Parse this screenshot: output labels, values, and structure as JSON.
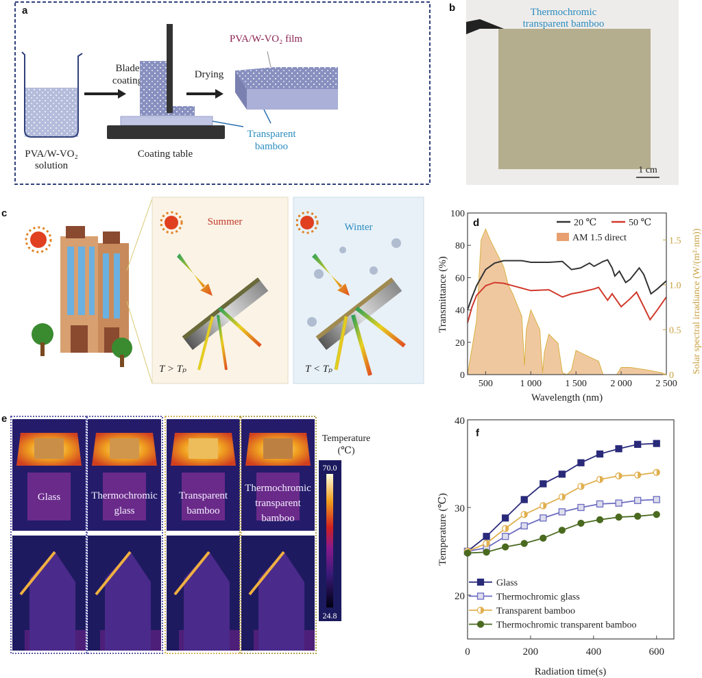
{
  "panel_a": {
    "label": "a",
    "solution_label_line1": "PVA/W-VO₂",
    "solution_label_line2": "solution",
    "step1_line1": "Blade",
    "step1_line2": "coating",
    "step2": "Drying",
    "table_label": "Coating table",
    "film_label": "PVA/W-VO₂ film",
    "substrate_line1": "Transparent",
    "substrate_line2": "bamboo",
    "colors": {
      "film": "#8b2252",
      "substrate": "#2a8bbf",
      "frame": "#2e3f7a"
    }
  },
  "panel_b": {
    "label": "b",
    "caption_line1": "Thermochromic",
    "caption_line2": "transparent bamboo",
    "scale_bar": "1 cm"
  },
  "panel_c": {
    "label": "c",
    "summer": "Summer",
    "winter": "Winter",
    "summer_condition": "T > Tₚ",
    "winter_condition": "T < Tₚ",
    "colors": {
      "summer": "#c0392b",
      "winter": "#2a8bbf"
    }
  },
  "panel_e": {
    "label": "e",
    "samples": [
      {
        "line1": "Glass",
        "line2": "",
        "line3": "",
        "frame": "#5a5aa8",
        "level": 0.55
      },
      {
        "line1": "Thermochromic",
        "line2": "glass",
        "line3": "",
        "frame": "#5a5aa8",
        "level": 0.6
      },
      {
        "line1": "Transparent",
        "line2": "bamboo",
        "line3": "",
        "frame": "#d6b25a",
        "level": 0.85
      },
      {
        "line1": "Thermochromic",
        "line2": "transparent",
        "line3": "bamboo",
        "frame": "#b0a050",
        "level": 0.45
      }
    ],
    "colorbar_title_line1": "Temperature",
    "colorbar_title_line2": "(℃)",
    "colorbar_max": "70.0",
    "colorbar_min": "24.8"
  },
  "chart_data": [
    {
      "panel": "d",
      "type": "line",
      "xlabel": "Wavelength (nm)",
      "ylabel": "Transmittance (%)",
      "y2label": "Solar spectral irradiance (W/(m²·nm))",
      "xlim": [
        300,
        2500
      ],
      "ylim": [
        0,
        100
      ],
      "y2lim": [
        0,
        1.8
      ],
      "xticks": [
        "500",
        "1 000",
        "1 500",
        "2 000",
        "2 500"
      ],
      "xtick_values": [
        500,
        1000,
        1500,
        2000,
        2500
      ],
      "yticks": [
        0,
        20,
        40,
        60,
        80,
        100
      ],
      "y2ticks": [
        "0",
        "0.5",
        "1.0",
        "1.5"
      ],
      "y2tick_values": [
        0,
        0.5,
        1.0,
        1.5
      ],
      "legend_position": "top-right",
      "series": [
        {
          "name": "20 ℃",
          "color": "#333333",
          "points": [
            [
              300,
              40
            ],
            [
              350,
              48
            ],
            [
              400,
              55
            ],
            [
              500,
              65
            ],
            [
              600,
              69
            ],
            [
              700,
              70.5
            ],
            [
              800,
              70.5
            ],
            [
              900,
              70.5
            ],
            [
              1000,
              69.5
            ],
            [
              1200,
              69.5
            ],
            [
              1350,
              70
            ],
            [
              1450,
              65
            ],
            [
              1550,
              66
            ],
            [
              1650,
              69
            ],
            [
              1700,
              67
            ],
            [
              1800,
              70
            ],
            [
              1850,
              71
            ],
            [
              1900,
              66
            ],
            [
              1930,
              61
            ],
            [
              1980,
              64
            ],
            [
              2050,
              57
            ],
            [
              2100,
              59
            ],
            [
              2200,
              66
            ],
            [
              2250,
              62
            ],
            [
              2330,
              50
            ],
            [
              2400,
              53
            ],
            [
              2500,
              58
            ]
          ]
        },
        {
          "name": "50 ℃",
          "color": "#d0382a",
          "points": [
            [
              300,
              32
            ],
            [
              350,
              42
            ],
            [
              400,
              49
            ],
            [
              500,
              55
            ],
            [
              600,
              57
            ],
            [
              700,
              56.5
            ],
            [
              800,
              55
            ],
            [
              900,
              53.5
            ],
            [
              1000,
              52
            ],
            [
              1200,
              52.5
            ],
            [
              1350,
              48
            ],
            [
              1450,
              50
            ],
            [
              1550,
              51
            ],
            [
              1700,
              53
            ],
            [
              1750,
              54
            ],
            [
              1850,
              46
            ],
            [
              1900,
              50
            ],
            [
              1950,
              46
            ],
            [
              2000,
              42
            ],
            [
              2100,
              47
            ],
            [
              2170,
              51
            ],
            [
              2250,
              42
            ],
            [
              2320,
              34
            ],
            [
              2400,
              40
            ],
            [
              2500,
              48
            ]
          ]
        }
      ],
      "area_series": {
        "name": "AM 1.5 direct",
        "color": "#f0c8a0",
        "edge": "#d8b040",
        "axis": "right",
        "points": [
          [
            300,
            0
          ],
          [
            350,
            0.3
          ],
          [
            400,
            0.6
          ],
          [
            450,
            1.5
          ],
          [
            500,
            1.62
          ],
          [
            550,
            1.5
          ],
          [
            600,
            1.4
          ],
          [
            700,
            1.2
          ],
          [
            750,
            1.0
          ],
          [
            800,
            0.9
          ],
          [
            900,
            0.65
          ],
          [
            930,
            0.1
          ],
          [
            950,
            0.5
          ],
          [
            1000,
            0.72
          ],
          [
            1100,
            0.5
          ],
          [
            1130,
            0.02
          ],
          [
            1150,
            0.25
          ],
          [
            1200,
            0.45
          ],
          [
            1300,
            0.35
          ],
          [
            1350,
            0.02
          ],
          [
            1400,
            0
          ],
          [
            1450,
            0.05
          ],
          [
            1500,
            0.27
          ],
          [
            1600,
            0.22
          ],
          [
            1750,
            0.15
          ],
          [
            1800,
            0
          ],
          [
            1950,
            0
          ],
          [
            2000,
            0.08
          ],
          [
            2100,
            0.08
          ],
          [
            2300,
            0.05
          ],
          [
            2450,
            0.02
          ],
          [
            2500,
            0
          ]
        ]
      },
      "colors": {
        "right_axis": "#c8a040"
      }
    },
    {
      "panel": "f",
      "type": "line",
      "xlabel": "Radiation time(s)",
      "ylabel": "Temperature (℃)",
      "xlim": [
        0,
        655
      ],
      "ylim": [
        15,
        40
      ],
      "xticks": [
        0,
        200,
        400,
        600
      ],
      "yticks": [
        20,
        30,
        40
      ],
      "legend_position": "bottom-left",
      "x": [
        0,
        60,
        120,
        180,
        240,
        300,
        360,
        420,
        480,
        540,
        600
      ],
      "series": [
        {
          "name": "Glass",
          "color": "#2a2a7a",
          "marker": "square-filled",
          "values": [
            25.0,
            26.7,
            28.8,
            30.9,
            32.7,
            33.8,
            35.1,
            36.1,
            36.7,
            37.2,
            37.3
          ]
        },
        {
          "name": "Thermochromic glass",
          "color": "#6a6ac0",
          "marker": "square-crossed",
          "values": [
            25.0,
            25.4,
            26.7,
            27.9,
            28.8,
            29.5,
            30.0,
            30.4,
            30.5,
            30.8,
            30.9
          ]
        },
        {
          "name": "Transparent bamboo",
          "color": "#e0b050",
          "marker": "circle-half",
          "values": [
            25.0,
            25.9,
            27.6,
            29.2,
            30.2,
            31.2,
            32.4,
            33.2,
            33.6,
            33.7,
            34.0
          ]
        },
        {
          "name": "Thermochromic transparent bamboo",
          "color": "#4a6a20",
          "marker": "circle-filled",
          "values": [
            24.8,
            24.9,
            25.5,
            25.9,
            26.5,
            27.4,
            28.2,
            28.6,
            28.9,
            29.0,
            29.2
          ]
        }
      ]
    }
  ]
}
